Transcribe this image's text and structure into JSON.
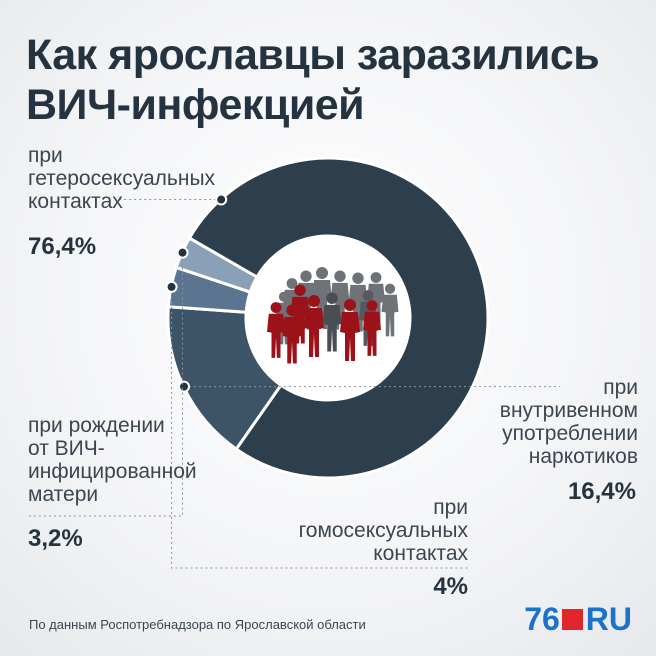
{
  "title_line1": "Как ярославцы заразились",
  "title_line2": "ВИЧ-инфекцией",
  "source": "По данным Роспотребнадзора по Ярославской области",
  "logo": {
    "number": "76",
    "suffix": "RU"
  },
  "colors": {
    "hetero": "#2d3e4d",
    "iv": "#3d5468",
    "homo": "#5b7590",
    "birth": "#8aa0b6",
    "red_figures": "#9b1219",
    "grey_figures": "#6f7378",
    "brand": "#1a73c9",
    "logo_red": "#e0262b"
  },
  "labels": {
    "hetero": [
      "при",
      "гетеросексуальных",
      "контактах"
    ],
    "iv": [
      "при",
      "внутривенном",
      "употреблении",
      "наркотиков"
    ],
    "homo": [
      "при",
      "гомосексуальных",
      "контактах"
    ],
    "birth": [
      "при рождении",
      "от ВИЧ-",
      "инфицированной",
      "матери"
    ]
  },
  "chart_data": {
    "type": "pie",
    "title": "Как ярославцы заразились ВИЧ-инфекцией",
    "categories": [
      "при гетеросексуальных контактах",
      "при внутривенном употреблении наркотиков",
      "при гомосексуальных контактах",
      "при рождении от ВИЧ-инфицированной матери"
    ],
    "values": [
      76.4,
      16.4,
      4,
      3.2
    ],
    "value_labels": [
      "76,4%",
      "16,4%",
      "4%",
      "3,2%"
    ],
    "unit": "%",
    "donut": true
  }
}
